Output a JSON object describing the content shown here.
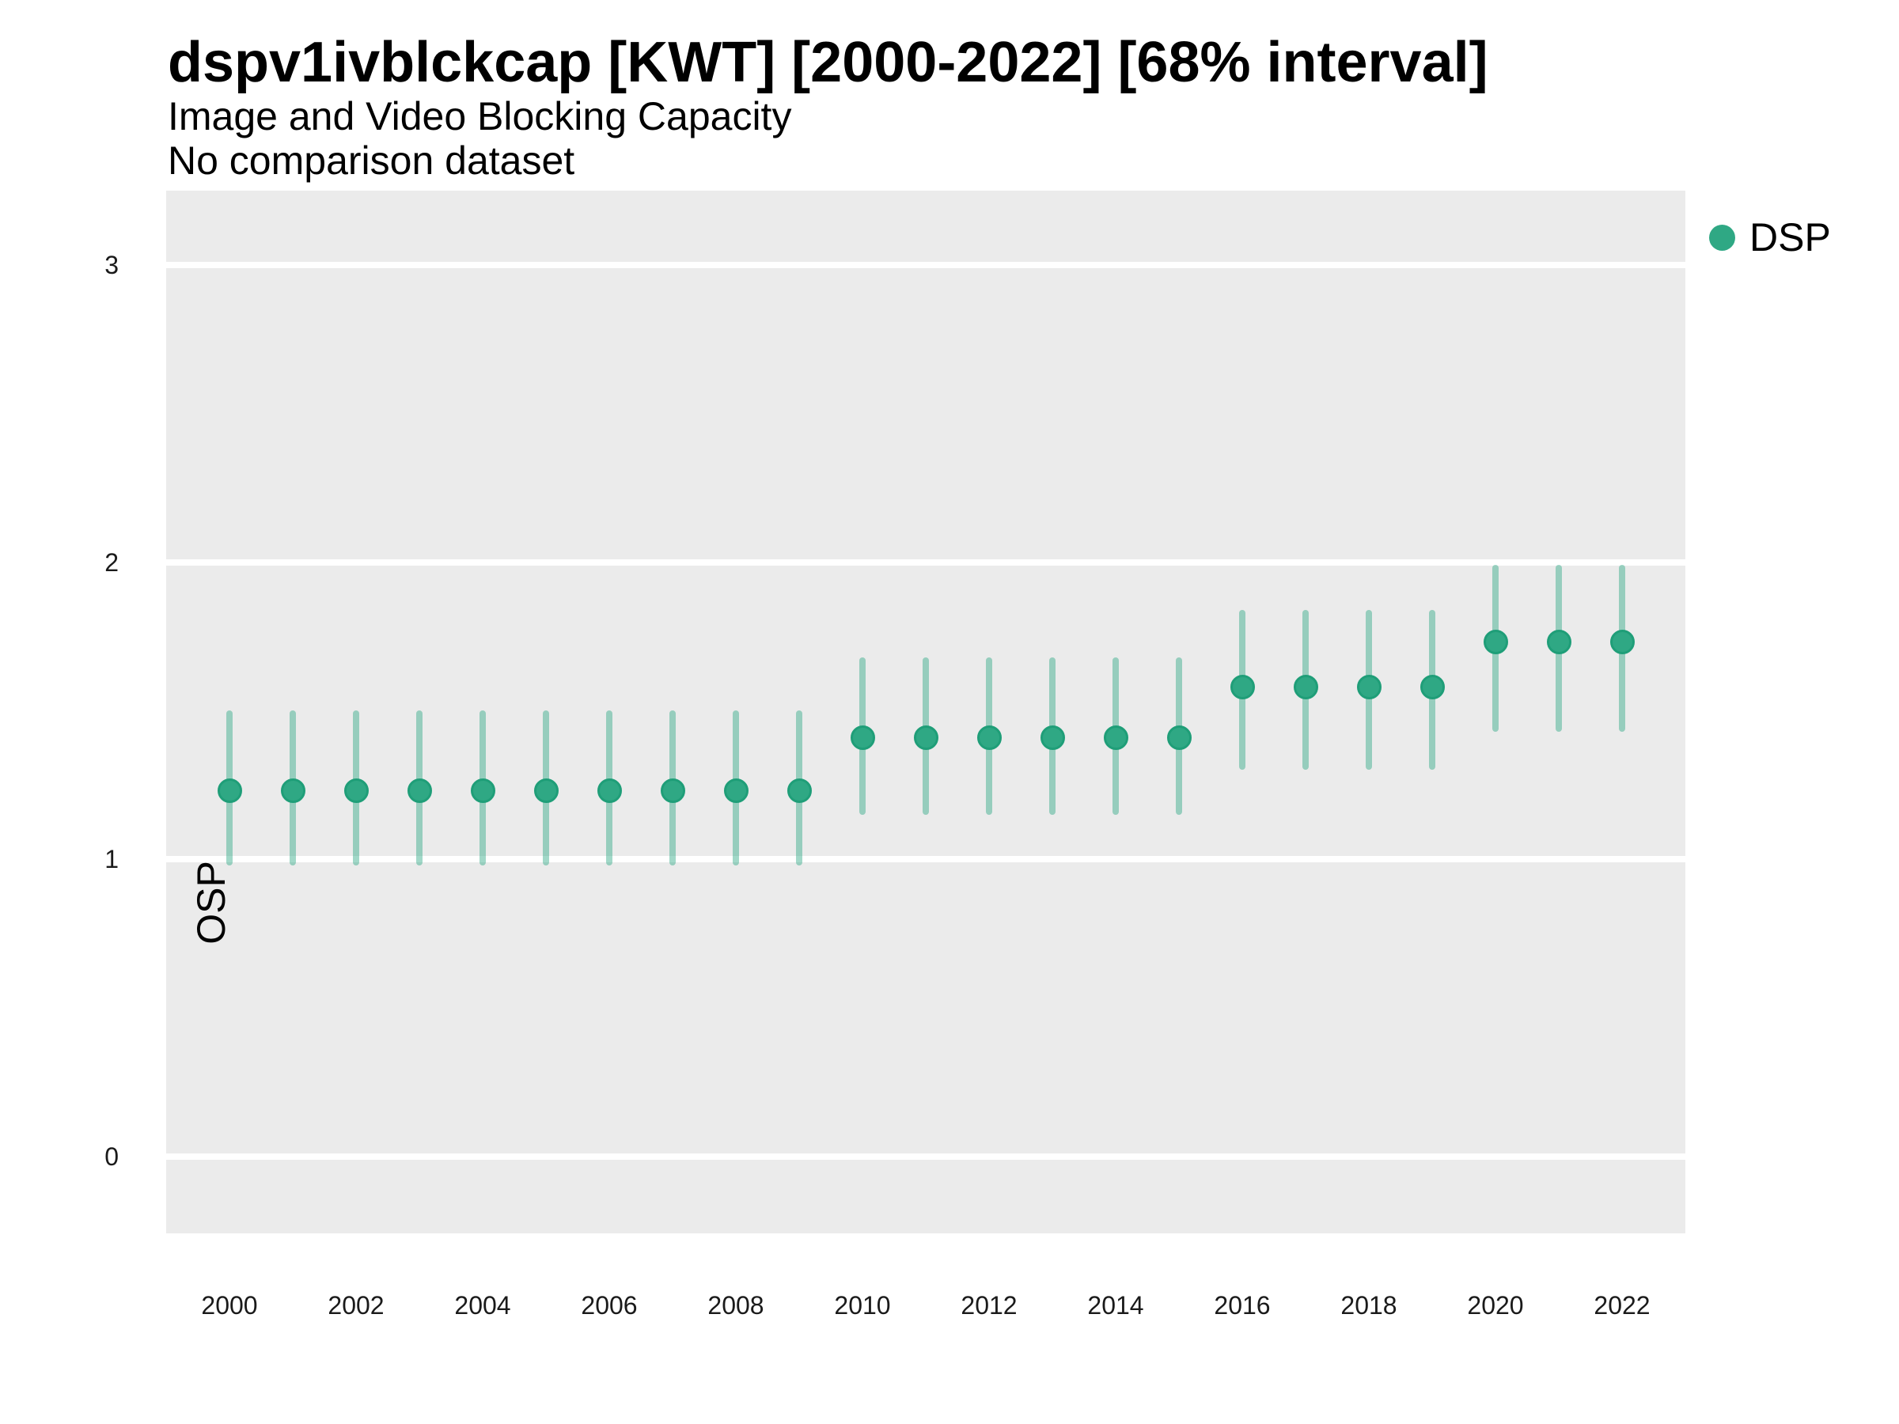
{
  "chart_data": {
    "type": "pointrange",
    "title": "dspv1ivblckcap [KWT] [2000-2022] [68% interval]",
    "subtitle": "Image and Video Blocking Capacity",
    "subtitle2": "No comparison dataset",
    "xlabel": "",
    "ylabel": "OSP",
    "x_ticks": [
      2000,
      2002,
      2004,
      2006,
      2008,
      2010,
      2012,
      2014,
      2016,
      2018,
      2020,
      2022
    ],
    "y_ticks": [
      0,
      1,
      2,
      3
    ],
    "xlim": [
      1999,
      2023
    ],
    "ylim": [
      -0.26,
      3.25
    ],
    "grid": "major-horizontal-white-on-gray",
    "legend_position": "top-right",
    "colors": {
      "point_fill": "#2FA884",
      "point_border": "#1F9E78",
      "interval": "rgba(47,168,132,0.45)",
      "panel_bg": "#EBEBEB",
      "gridline": "#FFFFFF"
    },
    "legend": [
      {
        "label": "DSP",
        "color": "#2FA884"
      }
    ],
    "series": [
      {
        "name": "DSP",
        "data": [
          {
            "x": 2000,
            "y": 1.23,
            "lo": 0.98,
            "hi": 1.5
          },
          {
            "x": 2001,
            "y": 1.23,
            "lo": 0.98,
            "hi": 1.5
          },
          {
            "x": 2002,
            "y": 1.23,
            "lo": 0.98,
            "hi": 1.5
          },
          {
            "x": 2003,
            "y": 1.23,
            "lo": 0.98,
            "hi": 1.5
          },
          {
            "x": 2004,
            "y": 1.23,
            "lo": 0.98,
            "hi": 1.5
          },
          {
            "x": 2005,
            "y": 1.23,
            "lo": 0.98,
            "hi": 1.5
          },
          {
            "x": 2006,
            "y": 1.23,
            "lo": 0.98,
            "hi": 1.5
          },
          {
            "x": 2007,
            "y": 1.23,
            "lo": 0.98,
            "hi": 1.5
          },
          {
            "x": 2008,
            "y": 1.23,
            "lo": 0.98,
            "hi": 1.5
          },
          {
            "x": 2009,
            "y": 1.23,
            "lo": 0.98,
            "hi": 1.5
          },
          {
            "x": 2010,
            "y": 1.41,
            "lo": 1.15,
            "hi": 1.68
          },
          {
            "x": 2011,
            "y": 1.41,
            "lo": 1.15,
            "hi": 1.68
          },
          {
            "x": 2012,
            "y": 1.41,
            "lo": 1.15,
            "hi": 1.68
          },
          {
            "x": 2013,
            "y": 1.41,
            "lo": 1.15,
            "hi": 1.68
          },
          {
            "x": 2014,
            "y": 1.41,
            "lo": 1.15,
            "hi": 1.68
          },
          {
            "x": 2015,
            "y": 1.41,
            "lo": 1.15,
            "hi": 1.68
          },
          {
            "x": 2016,
            "y": 1.58,
            "lo": 1.3,
            "hi": 1.84
          },
          {
            "x": 2017,
            "y": 1.58,
            "lo": 1.3,
            "hi": 1.84
          },
          {
            "x": 2018,
            "y": 1.58,
            "lo": 1.3,
            "hi": 1.84
          },
          {
            "x": 2019,
            "y": 1.58,
            "lo": 1.3,
            "hi": 1.84
          },
          {
            "x": 2020,
            "y": 1.73,
            "lo": 1.43,
            "hi": 1.99
          },
          {
            "x": 2021,
            "y": 1.73,
            "lo": 1.43,
            "hi": 1.99
          },
          {
            "x": 2022,
            "y": 1.73,
            "lo": 1.43,
            "hi": 1.99
          }
        ]
      }
    ]
  }
}
